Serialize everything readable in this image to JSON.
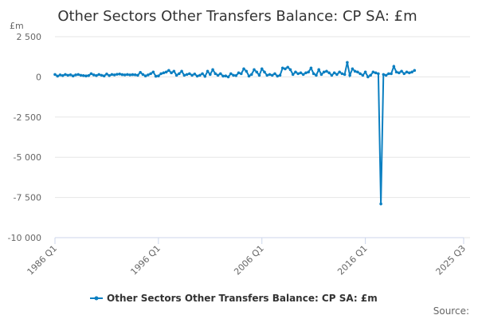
{
  "chart_data": {
    "type": "line",
    "title": "Other Sectors Other Transfers Balance: CP SA: £m",
    "ylabel": "£m",
    "source_label": "Source:",
    "ylim": [
      -10000,
      2500
    ],
    "y_ticks": [
      2500,
      0,
      -2500,
      -5000,
      -7500,
      -10000
    ],
    "y_tick_labels": [
      "2 500",
      "0",
      "-2 500",
      "-5 000",
      "-7 500",
      "-10 000"
    ],
    "x_range": [
      "1986 Q1",
      "2025 Q3"
    ],
    "x_tick_labels": [
      "1986 Q1",
      "1996 Q1",
      "2006 Q1",
      "2016 Q1",
      "2025 Q3"
    ],
    "grid": "horizontal",
    "legend_position": "bottom",
    "color": "#0b7fc1",
    "series": [
      {
        "name": "Other Sectors Other Transfers Balance: CP SA: £m",
        "start": "1986 Q1",
        "frequency": "quarterly",
        "values": [
          150,
          50,
          120,
          80,
          150,
          100,
          130,
          60,
          120,
          150,
          100,
          80,
          60,
          80,
          200,
          120,
          80,
          150,
          100,
          60,
          180,
          80,
          150,
          120,
          160,
          180,
          140,
          120,
          150,
          120,
          140,
          130,
          100,
          280,
          150,
          60,
          120,
          200,
          300,
          40,
          60,
          200,
          250,
          300,
          400,
          250,
          350,
          100,
          200,
          350,
          100,
          150,
          200,
          100,
          180,
          50,
          100,
          200,
          30,
          350,
          150,
          450,
          200,
          100,
          200,
          50,
          60,
          0,
          200,
          100,
          80,
          250,
          200,
          500,
          350,
          50,
          150,
          450,
          300,
          100,
          500,
          300,
          100,
          150,
          100,
          200,
          50,
          100,
          550,
          500,
          600,
          450,
          150,
          300,
          200,
          250,
          150,
          250,
          300,
          550,
          200,
          100,
          450,
          150,
          300,
          350,
          250,
          100,
          250,
          150,
          300,
          200,
          150,
          900,
          100,
          500,
          350,
          300,
          200,
          100,
          300,
          0,
          100,
          300,
          250,
          200,
          -7900,
          150,
          100,
          200,
          200,
          650,
          300,
          250,
          350,
          200,
          300,
          250,
          300,
          400
        ]
      }
    ]
  }
}
